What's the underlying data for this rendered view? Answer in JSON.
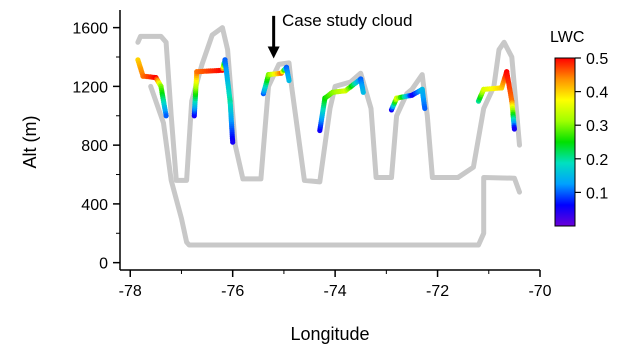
{
  "chart_data": {
    "type": "scatter",
    "xlabel": "Longitude",
    "ylabel": "Alt (m)",
    "xlim": [
      -78.2,
      -70
    ],
    "ylim": [
      -50,
      1720
    ],
    "x_ticks": [
      -78,
      -76,
      -74,
      -72,
      -70
    ],
    "x_tick_labels": [
      "-78",
      "-76",
      "-74",
      "-72",
      "-70"
    ],
    "y_ticks": [
      0,
      400,
      800,
      1200,
      1600
    ],
    "y_tick_labels": [
      "0",
      "400",
      "800",
      "1200",
      "1600"
    ],
    "annotation": {
      "text": "Case study cloud",
      "x": -75.2,
      "y_from": 1680,
      "y_to": 1390
    },
    "colorbar": {
      "label": "LWC",
      "range": [
        0,
        0.5
      ],
      "ticks": [
        0.1,
        0.2,
        0.3,
        0.4,
        0.5
      ],
      "tick_labels": [
        "0.1",
        "0.2",
        "0.3",
        "0.4",
        "0.5"
      ],
      "colors": [
        "#6a00d8",
        "#0000ff",
        "#00a0ff",
        "#00e0c0",
        "#00e000",
        "#a0ff00",
        "#ffff00",
        "#ff9000",
        "#ff0000"
      ]
    },
    "track_color": "#c8c8c8",
    "track": [
      [
        -77.85,
        1500
      ],
      [
        -77.8,
        1540
      ],
      [
        -77.4,
        1540
      ],
      [
        -77.3,
        1500
      ],
      [
        -77.2,
        1000
      ],
      [
        -77.1,
        560
      ],
      [
        -76.9,
        560
      ],
      [
        -76.8,
        1100
      ],
      [
        -76.6,
        1350
      ],
      [
        -76.4,
        1550
      ],
      [
        -76.2,
        1600
      ],
      [
        -76.1,
        1450
      ],
      [
        -75.95,
        800
      ],
      [
        -75.8,
        570
      ],
      [
        -75.45,
        570
      ],
      [
        -75.3,
        1200
      ],
      [
        -75.1,
        1350
      ],
      [
        -74.9,
        1360
      ],
      [
        -74.85,
        1200
      ],
      [
        -74.6,
        560
      ],
      [
        -74.3,
        550
      ],
      [
        -74.1,
        1050
      ],
      [
        -74.0,
        1200
      ],
      [
        -73.7,
        1230
      ],
      [
        -73.5,
        1290
      ],
      [
        -73.3,
        1050
      ],
      [
        -73.2,
        580
      ],
      [
        -72.9,
        580
      ],
      [
        -72.8,
        1000
      ],
      [
        -72.6,
        1150
      ],
      [
        -72.5,
        1180
      ],
      [
        -72.3,
        1280
      ],
      [
        -72.2,
        1000
      ],
      [
        -72.1,
        580
      ],
      [
        -71.6,
        580
      ],
      [
        -71.3,
        650
      ],
      [
        -71.1,
        1050
      ],
      [
        -70.9,
        1200
      ],
      [
        -70.8,
        1450
      ],
      [
        -70.7,
        1500
      ],
      [
        -70.55,
        1400
      ],
      [
        -70.4,
        800
      ]
    ],
    "track_lower": [
      [
        -77.6,
        1200
      ],
      [
        -77.35,
        950
      ],
      [
        -77.2,
        560
      ],
      [
        -77.0,
        300
      ],
      [
        -76.9,
        140
      ],
      [
        -76.85,
        120
      ],
      [
        -71.2,
        120
      ],
      [
        -71.1,
        200
      ],
      [
        -71.1,
        580
      ],
      [
        -70.5,
        575
      ],
      [
        -70.4,
        480
      ]
    ],
    "segments": [
      {
        "points": [
          [
            -77.85,
            1380
          ],
          [
            -77.75,
            1270
          ],
          [
            -77.5,
            1260
          ],
          [
            -77.4,
            1200
          ],
          [
            -77.3,
            1000
          ]
        ],
        "lwc": [
          0.4,
          0.45,
          0.5,
          0.3,
          0.1
        ]
      },
      {
        "points": [
          [
            -76.75,
            1000
          ],
          [
            -76.7,
            1300
          ],
          [
            -76.2,
            1310
          ],
          [
            -76.15,
            1380
          ],
          [
            -76.05,
            1100
          ],
          [
            -76.0,
            820
          ]
        ],
        "lwc": [
          0.05,
          0.45,
          0.5,
          0.1,
          0.2,
          0.05
        ]
      },
      {
        "points": [
          [
            -75.4,
            1150
          ],
          [
            -75.3,
            1280
          ],
          [
            -75.05,
            1290
          ],
          [
            -74.95,
            1330
          ],
          [
            -74.9,
            1240
          ]
        ],
        "lwc": [
          0.1,
          0.3,
          0.45,
          0.1,
          0.15
        ]
      },
      {
        "points": [
          [
            -74.3,
            900
          ],
          [
            -74.2,
            1120
          ],
          [
            -74.05,
            1160
          ],
          [
            -73.8,
            1170
          ],
          [
            -73.5,
            1250
          ],
          [
            -73.45,
            1160
          ]
        ],
        "lwc": [
          0.05,
          0.25,
          0.3,
          0.35,
          0.1,
          0.15
        ]
      },
      {
        "points": [
          [
            -72.9,
            1040
          ],
          [
            -72.8,
            1120
          ],
          [
            -72.5,
            1140
          ],
          [
            -72.3,
            1180
          ],
          [
            -72.25,
            1050
          ]
        ],
        "lwc": [
          0.05,
          0.35,
          0.05,
          0.15,
          0.1
        ]
      },
      {
        "points": [
          [
            -71.2,
            1100
          ],
          [
            -71.1,
            1180
          ],
          [
            -70.75,
            1190
          ],
          [
            -70.65,
            1300
          ],
          [
            -70.55,
            1100
          ],
          [
            -70.5,
            910
          ]
        ],
        "lwc": [
          0.2,
          0.35,
          0.4,
          0.5,
          0.45,
          0.05
        ]
      }
    ]
  }
}
